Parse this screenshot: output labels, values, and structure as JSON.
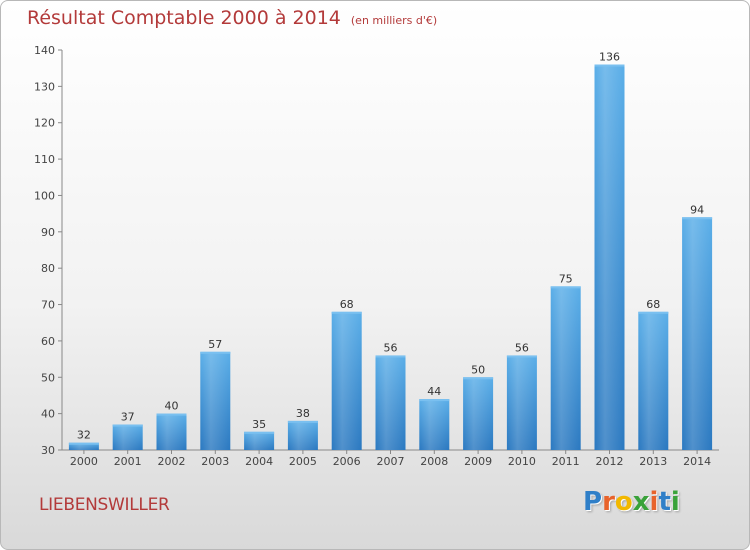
{
  "title": "Résultat Comptable 2000 à 2014",
  "title_unit": "(en milliers d'€)",
  "commune": "LIEBENSWILLER",
  "logo": {
    "letters": [
      "P",
      "r",
      "o",
      "x",
      "i",
      "t",
      "i"
    ],
    "colors": [
      "#2f7fc8",
      "#e8632b",
      "#f2b800",
      "#3aa23a",
      "#e8632b",
      "#2f7fc8",
      "#3aa23a"
    ]
  },
  "colors": {
    "bar": "#4a9fe0",
    "bar_dark": "#2a78c0",
    "title": "#b33a3a"
  },
  "chart_data": {
    "type": "bar",
    "categories": [
      "2000",
      "2001",
      "2002",
      "2003",
      "2004",
      "2005",
      "2006",
      "2007",
      "2008",
      "2009",
      "2010",
      "2011",
      "2012",
      "2013",
      "2014"
    ],
    "values": [
      32,
      37,
      40,
      57,
      35,
      38,
      68,
      56,
      44,
      50,
      56,
      75,
      136,
      68,
      94
    ],
    "ylim": [
      30,
      140
    ],
    "yticks": [
      30,
      40,
      50,
      60,
      70,
      80,
      90,
      100,
      110,
      120,
      130,
      140
    ],
    "grid": false
  }
}
